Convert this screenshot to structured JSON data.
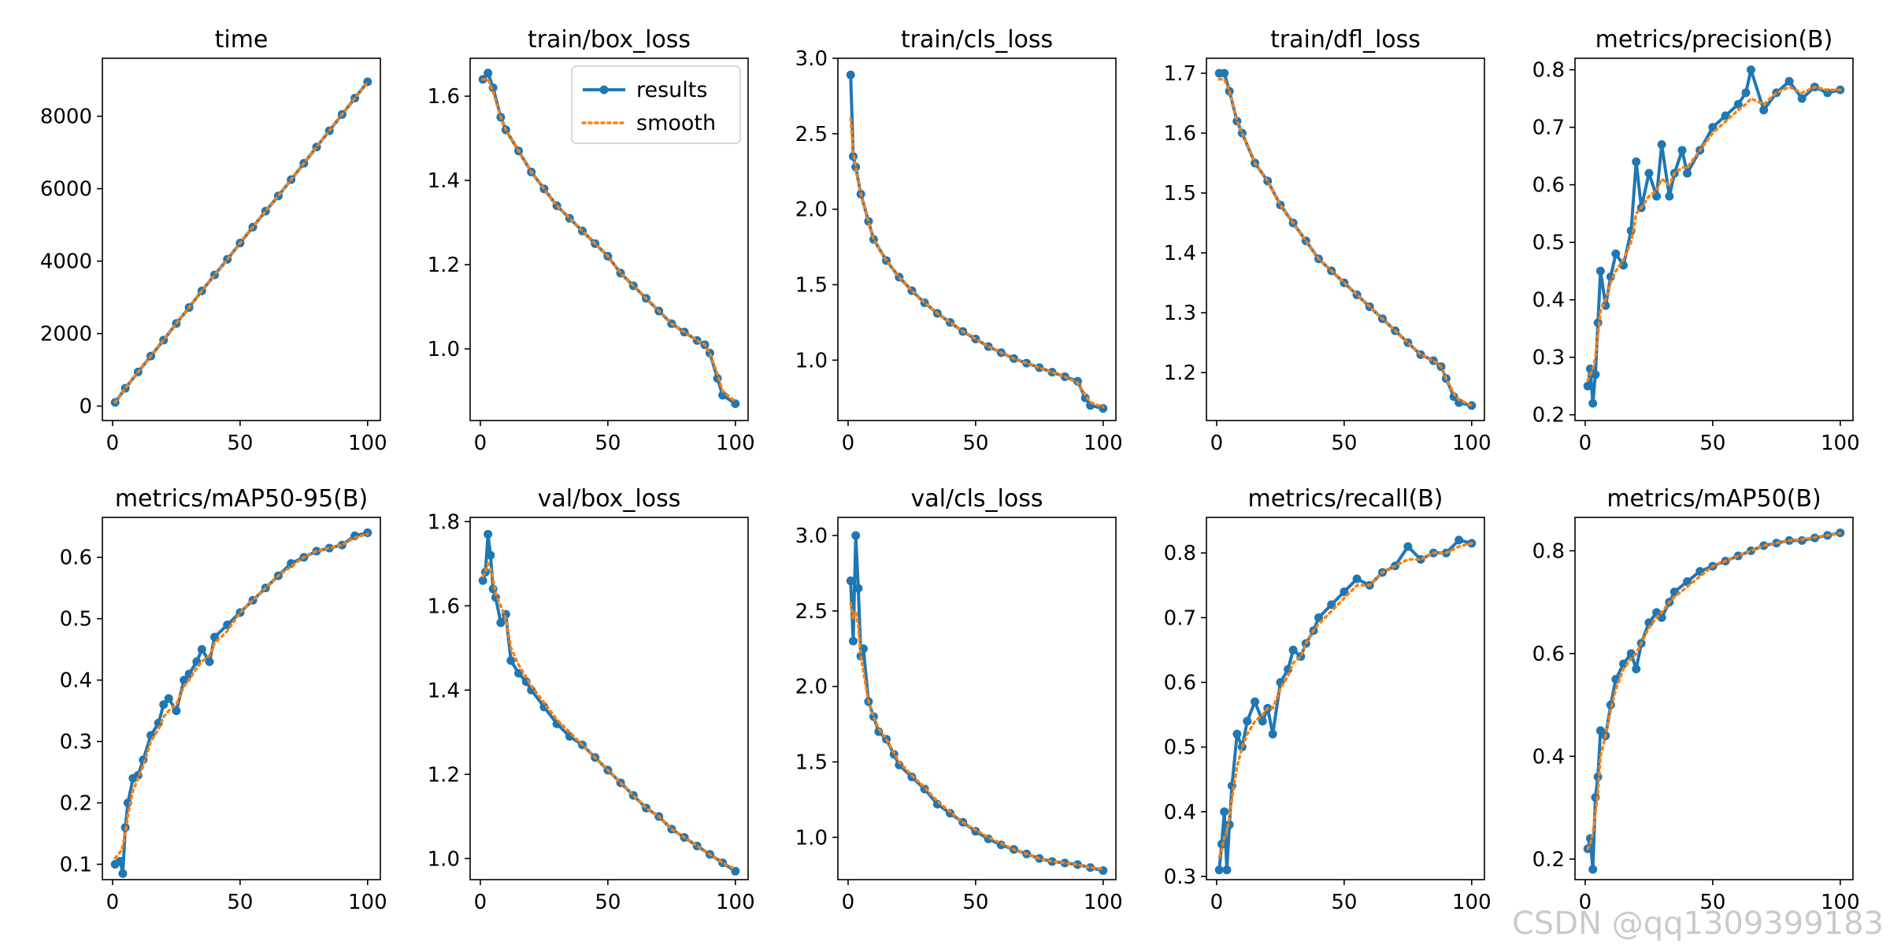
{
  "figure": {
    "watermark": "CSDN @qq1309399183",
    "legend": {
      "results": "results",
      "smooth": "smooth"
    },
    "colors": {
      "results": "#1f77b4",
      "smooth": "#ff7f0e",
      "axis": "#000000"
    }
  },
  "chart_data": [
    {
      "type": "line",
      "title": "time",
      "xlim": [
        -4,
        105
      ],
      "ylim": [
        -400,
        9600
      ],
      "xticks": [
        0,
        50,
        100
      ],
      "xtick_labels": [
        "0",
        "50",
        "100"
      ],
      "yticks": [
        0,
        2000,
        4000,
        6000,
        8000
      ],
      "ytick_labels": [
        "0",
        "2000",
        "4000",
        "6000",
        "8000"
      ],
      "x": [
        1,
        5,
        10,
        15,
        20,
        25,
        30,
        35,
        40,
        45,
        50,
        55,
        60,
        65,
        70,
        75,
        80,
        85,
        90,
        95,
        100
      ],
      "values": [
        100,
        490,
        940,
        1380,
        1820,
        2280,
        2720,
        3180,
        3620,
        4050,
        4500,
        4940,
        5380,
        5800,
        6250,
        6700,
        7150,
        7600,
        8050,
        8500,
        8950
      ],
      "smooth": [
        100,
        490,
        940,
        1380,
        1820,
        2280,
        2720,
        3180,
        3620,
        4050,
        4500,
        4940,
        5380,
        5800,
        6250,
        6700,
        7150,
        7600,
        8050,
        8500,
        8950
      ],
      "legend": false
    },
    {
      "type": "line",
      "title": "train/box_loss",
      "xlim": [
        -4,
        105
      ],
      "ylim": [
        0.83,
        1.69
      ],
      "xticks": [
        0,
        50,
        100
      ],
      "xtick_labels": [
        "0",
        "50",
        "100"
      ],
      "yticks": [
        1.0,
        1.2,
        1.4,
        1.6
      ],
      "ytick_labels": [
        "1.0",
        "1.2",
        "1.4",
        "1.6"
      ],
      "x": [
        1,
        3,
        5,
        8,
        10,
        15,
        20,
        25,
        30,
        35,
        40,
        45,
        50,
        55,
        60,
        65,
        70,
        75,
        80,
        85,
        88,
        90,
        93,
        95,
        100
      ],
      "values": [
        1.64,
        1.655,
        1.62,
        1.55,
        1.52,
        1.47,
        1.42,
        1.38,
        1.34,
        1.31,
        1.28,
        1.25,
        1.22,
        1.18,
        1.15,
        1.12,
        1.09,
        1.06,
        1.04,
        1.02,
        1.01,
        0.99,
        0.93,
        0.89,
        0.87
      ],
      "smooth": [
        1.64,
        1.64,
        1.61,
        1.55,
        1.52,
        1.47,
        1.42,
        1.38,
        1.34,
        1.31,
        1.28,
        1.25,
        1.22,
        1.18,
        1.15,
        1.12,
        1.09,
        1.06,
        1.04,
        1.02,
        1.01,
        0.99,
        0.94,
        0.9,
        0.875
      ],
      "legend": true
    },
    {
      "type": "line",
      "title": "train/cls_loss",
      "xlim": [
        -4,
        105
      ],
      "ylim": [
        0.6,
        3.0
      ],
      "xticks": [
        0,
        50,
        100
      ],
      "xtick_labels": [
        "0",
        "50",
        "100"
      ],
      "yticks": [
        1.0,
        1.5,
        2.0,
        2.5,
        3.0
      ],
      "ytick_labels": [
        "1.0",
        "1.5",
        "2.0",
        "2.5",
        "3.0"
      ],
      "x": [
        1,
        2,
        3,
        5,
        8,
        10,
        15,
        20,
        25,
        30,
        35,
        40,
        45,
        50,
        55,
        60,
        65,
        70,
        75,
        80,
        85,
        90,
        93,
        95,
        100
      ],
      "values": [
        2.89,
        2.35,
        2.28,
        2.1,
        1.92,
        1.8,
        1.66,
        1.55,
        1.46,
        1.38,
        1.31,
        1.25,
        1.19,
        1.14,
        1.09,
        1.05,
        1.01,
        0.98,
        0.95,
        0.92,
        0.89,
        0.86,
        0.75,
        0.7,
        0.68
      ],
      "smooth": [
        2.6,
        2.38,
        2.28,
        2.1,
        1.92,
        1.8,
        1.66,
        1.55,
        1.46,
        1.38,
        1.31,
        1.25,
        1.19,
        1.14,
        1.09,
        1.05,
        1.01,
        0.98,
        0.95,
        0.92,
        0.89,
        0.85,
        0.77,
        0.72,
        0.69
      ],
      "legend": false
    },
    {
      "type": "line",
      "title": "train/dfl_loss",
      "xlim": [
        -4,
        105
      ],
      "ylim": [
        1.12,
        1.725
      ],
      "xticks": [
        0,
        50,
        100
      ],
      "xtick_labels": [
        "0",
        "50",
        "100"
      ],
      "yticks": [
        1.2,
        1.3,
        1.4,
        1.5,
        1.6,
        1.7
      ],
      "ytick_labels": [
        "1.2",
        "1.3",
        "1.4",
        "1.5",
        "1.6",
        "1.7"
      ],
      "x": [
        1,
        3,
        5,
        8,
        10,
        15,
        20,
        25,
        30,
        35,
        40,
        45,
        50,
        55,
        60,
        65,
        70,
        75,
        80,
        85,
        88,
        90,
        93,
        95,
        100
      ],
      "values": [
        1.7,
        1.7,
        1.67,
        1.62,
        1.6,
        1.55,
        1.52,
        1.48,
        1.45,
        1.42,
        1.39,
        1.37,
        1.35,
        1.33,
        1.31,
        1.29,
        1.27,
        1.25,
        1.23,
        1.22,
        1.21,
        1.19,
        1.16,
        1.15,
        1.145
      ],
      "smooth": [
        1.69,
        1.69,
        1.67,
        1.62,
        1.6,
        1.55,
        1.52,
        1.48,
        1.45,
        1.42,
        1.39,
        1.37,
        1.35,
        1.33,
        1.31,
        1.29,
        1.27,
        1.25,
        1.23,
        1.22,
        1.21,
        1.19,
        1.165,
        1.155,
        1.145
      ],
      "legend": false
    },
    {
      "type": "line",
      "title": "metrics/precision(B)",
      "xlim": [
        -4,
        105
      ],
      "ylim": [
        0.19,
        0.82
      ],
      "xticks": [
        0,
        50,
        100
      ],
      "xtick_labels": [
        "0",
        "50",
        "100"
      ],
      "yticks": [
        0.2,
        0.3,
        0.4,
        0.5,
        0.6,
        0.7,
        0.8
      ],
      "ytick_labels": [
        "0.2",
        "0.3",
        "0.4",
        "0.5",
        "0.6",
        "0.7",
        "0.8"
      ],
      "x": [
        1,
        2,
        3,
        4,
        5,
        6,
        8,
        10,
        12,
        15,
        18,
        20,
        22,
        25,
        28,
        30,
        33,
        35,
        38,
        40,
        45,
        50,
        55,
        60,
        63,
        65,
        70,
        75,
        80,
        85,
        90,
        95,
        100
      ],
      "values": [
        0.25,
        0.28,
        0.22,
        0.27,
        0.36,
        0.45,
        0.39,
        0.44,
        0.48,
        0.46,
        0.52,
        0.64,
        0.56,
        0.62,
        0.58,
        0.67,
        0.58,
        0.62,
        0.66,
        0.62,
        0.66,
        0.7,
        0.72,
        0.74,
        0.76,
        0.8,
        0.73,
        0.76,
        0.78,
        0.75,
        0.77,
        0.76,
        0.765
      ],
      "smooth": [
        0.26,
        0.27,
        0.28,
        0.3,
        0.34,
        0.38,
        0.4,
        0.43,
        0.45,
        0.47,
        0.5,
        0.55,
        0.56,
        0.58,
        0.59,
        0.61,
        0.6,
        0.62,
        0.63,
        0.63,
        0.66,
        0.69,
        0.71,
        0.73,
        0.74,
        0.75,
        0.74,
        0.76,
        0.77,
        0.76,
        0.77,
        0.765,
        0.765
      ],
      "legend": false
    },
    {
      "type": "line",
      "title": "metrics/mAP50-95(B)",
      "xlim": [
        -4,
        105
      ],
      "ylim": [
        0.075,
        0.665
      ],
      "xticks": [
        0,
        50,
        100
      ],
      "xtick_labels": [
        "0",
        "50",
        "100"
      ],
      "yticks": [
        0.1,
        0.2,
        0.3,
        0.4,
        0.5,
        0.6
      ],
      "ytick_labels": [
        "0.1",
        "0.2",
        "0.3",
        "0.4",
        "0.5",
        "0.6"
      ],
      "x": [
        1,
        3,
        4,
        5,
        6,
        8,
        10,
        12,
        15,
        18,
        20,
        22,
        25,
        28,
        30,
        33,
        35,
        38,
        40,
        45,
        50,
        55,
        60,
        65,
        70,
        75,
        80,
        85,
        90,
        95,
        100
      ],
      "values": [
        0.1,
        0.105,
        0.085,
        0.16,
        0.2,
        0.24,
        0.245,
        0.27,
        0.31,
        0.33,
        0.36,
        0.37,
        0.35,
        0.4,
        0.41,
        0.43,
        0.45,
        0.43,
        0.47,
        0.49,
        0.51,
        0.53,
        0.55,
        0.57,
        0.59,
        0.6,
        0.61,
        0.615,
        0.62,
        0.635,
        0.64
      ],
      "smooth": [
        0.11,
        0.12,
        0.13,
        0.15,
        0.18,
        0.22,
        0.24,
        0.26,
        0.3,
        0.32,
        0.34,
        0.35,
        0.36,
        0.39,
        0.4,
        0.42,
        0.43,
        0.44,
        0.46,
        0.48,
        0.51,
        0.53,
        0.55,
        0.57,
        0.585,
        0.6,
        0.61,
        0.615,
        0.62,
        0.632,
        0.638
      ],
      "legend": false
    },
    {
      "type": "line",
      "title": "val/box_loss",
      "xlim": [
        -4,
        105
      ],
      "ylim": [
        0.95,
        1.81
      ],
      "xticks": [
        0,
        50,
        100
      ],
      "xtick_labels": [
        "0",
        "50",
        "100"
      ],
      "yticks": [
        1.0,
        1.2,
        1.4,
        1.6,
        1.8
      ],
      "ytick_labels": [
        "1.0",
        "1.2",
        "1.4",
        "1.6",
        "1.8"
      ],
      "x": [
        1,
        2,
        3,
        4,
        5,
        6,
        8,
        10,
        12,
        15,
        18,
        20,
        25,
        30,
        35,
        40,
        45,
        50,
        55,
        60,
        65,
        70,
        75,
        80,
        85,
        90,
        95,
        100
      ],
      "values": [
        1.66,
        1.68,
        1.77,
        1.72,
        1.64,
        1.62,
        1.56,
        1.58,
        1.47,
        1.44,
        1.42,
        1.4,
        1.36,
        1.32,
        1.29,
        1.27,
        1.24,
        1.21,
        1.18,
        1.15,
        1.12,
        1.1,
        1.07,
        1.05,
        1.03,
        1.01,
        0.99,
        0.97
      ],
      "smooth": [
        1.67,
        1.68,
        1.7,
        1.69,
        1.66,
        1.63,
        1.6,
        1.57,
        1.5,
        1.46,
        1.43,
        1.41,
        1.37,
        1.33,
        1.3,
        1.27,
        1.24,
        1.21,
        1.18,
        1.15,
        1.12,
        1.1,
        1.07,
        1.05,
        1.03,
        1.01,
        0.99,
        0.975
      ],
      "legend": false
    },
    {
      "type": "line",
      "title": "val/cls_loss",
      "xlim": [
        -4,
        105
      ],
      "ylim": [
        0.72,
        3.12
      ],
      "xticks": [
        0,
        50,
        100
      ],
      "xtick_labels": [
        "0",
        "50",
        "100"
      ],
      "yticks": [
        1.0,
        1.5,
        2.0,
        2.5,
        3.0
      ],
      "ytick_labels": [
        "1.0",
        "1.5",
        "2.0",
        "2.5",
        "3.0"
      ],
      "x": [
        1,
        2,
        3,
        4,
        5,
        6,
        8,
        10,
        12,
        15,
        18,
        20,
        25,
        30,
        35,
        40,
        45,
        50,
        55,
        60,
        65,
        70,
        75,
        80,
        85,
        90,
        95,
        100
      ],
      "values": [
        2.7,
        2.3,
        3.0,
        2.65,
        2.2,
        2.25,
        1.9,
        1.8,
        1.7,
        1.65,
        1.55,
        1.48,
        1.4,
        1.32,
        1.22,
        1.16,
        1.1,
        1.04,
        0.99,
        0.95,
        0.92,
        0.89,
        0.86,
        0.84,
        0.83,
        0.82,
        0.8,
        0.78
      ],
      "smooth": [
        2.55,
        2.45,
        2.5,
        2.4,
        2.2,
        2.1,
        1.9,
        1.8,
        1.72,
        1.65,
        1.56,
        1.5,
        1.41,
        1.33,
        1.24,
        1.17,
        1.1,
        1.05,
        1.0,
        0.96,
        0.92,
        0.89,
        0.86,
        0.84,
        0.83,
        0.82,
        0.8,
        0.79
      ],
      "legend": false
    },
    {
      "type": "line",
      "title": "metrics/recall(B)",
      "xlim": [
        -4,
        105
      ],
      "ylim": [
        0.295,
        0.855
      ],
      "xticks": [
        0,
        50,
        100
      ],
      "xtick_labels": [
        "0",
        "50",
        "100"
      ],
      "yticks": [
        0.3,
        0.4,
        0.5,
        0.6,
        0.7,
        0.8
      ],
      "ytick_labels": [
        "0.3",
        "0.4",
        "0.5",
        "0.6",
        "0.7",
        "0.8"
      ],
      "x": [
        1,
        2,
        3,
        4,
        5,
        6,
        8,
        10,
        12,
        15,
        18,
        20,
        22,
        25,
        28,
        30,
        33,
        35,
        38,
        40,
        45,
        50,
        55,
        60,
        65,
        70,
        75,
        80,
        85,
        90,
        95,
        100
      ],
      "values": [
        0.31,
        0.35,
        0.4,
        0.31,
        0.38,
        0.44,
        0.52,
        0.5,
        0.54,
        0.57,
        0.54,
        0.56,
        0.52,
        0.6,
        0.62,
        0.65,
        0.64,
        0.66,
        0.68,
        0.7,
        0.72,
        0.74,
        0.76,
        0.75,
        0.77,
        0.78,
        0.81,
        0.79,
        0.8,
        0.8,
        0.82,
        0.815
      ],
      "smooth": [
        0.33,
        0.34,
        0.36,
        0.37,
        0.39,
        0.42,
        0.47,
        0.5,
        0.52,
        0.54,
        0.55,
        0.56,
        0.56,
        0.59,
        0.61,
        0.63,
        0.64,
        0.66,
        0.68,
        0.69,
        0.71,
        0.73,
        0.75,
        0.75,
        0.77,
        0.78,
        0.79,
        0.79,
        0.8,
        0.8,
        0.81,
        0.815
      ],
      "legend": false
    },
    {
      "type": "line",
      "title": "metrics/mAP50(B)",
      "xlim": [
        -4,
        105
      ],
      "ylim": [
        0.16,
        0.865
      ],
      "xticks": [
        0,
        50,
        100
      ],
      "xtick_labels": [
        "0",
        "50",
        "100"
      ],
      "yticks": [
        0.2,
        0.4,
        0.6,
        0.8
      ],
      "ytick_labels": [
        "0.2",
        "0.4",
        "0.6",
        "0.8"
      ],
      "x": [
        1,
        2,
        3,
        4,
        5,
        6,
        8,
        10,
        12,
        15,
        18,
        20,
        22,
        25,
        28,
        30,
        33,
        35,
        40,
        45,
        50,
        55,
        60,
        65,
        70,
        75,
        80,
        85,
        90,
        95,
        100
      ],
      "values": [
        0.22,
        0.24,
        0.18,
        0.32,
        0.36,
        0.45,
        0.44,
        0.5,
        0.55,
        0.58,
        0.6,
        0.57,
        0.62,
        0.66,
        0.68,
        0.67,
        0.7,
        0.72,
        0.74,
        0.76,
        0.77,
        0.78,
        0.79,
        0.8,
        0.81,
        0.815,
        0.82,
        0.82,
        0.825,
        0.83,
        0.835
      ],
      "smooth": [
        0.22,
        0.23,
        0.25,
        0.29,
        0.33,
        0.4,
        0.44,
        0.49,
        0.53,
        0.57,
        0.59,
        0.6,
        0.62,
        0.65,
        0.67,
        0.68,
        0.7,
        0.71,
        0.73,
        0.75,
        0.77,
        0.78,
        0.79,
        0.8,
        0.81,
        0.815,
        0.82,
        0.822,
        0.826,
        0.83,
        0.834
      ],
      "legend": false
    }
  ]
}
